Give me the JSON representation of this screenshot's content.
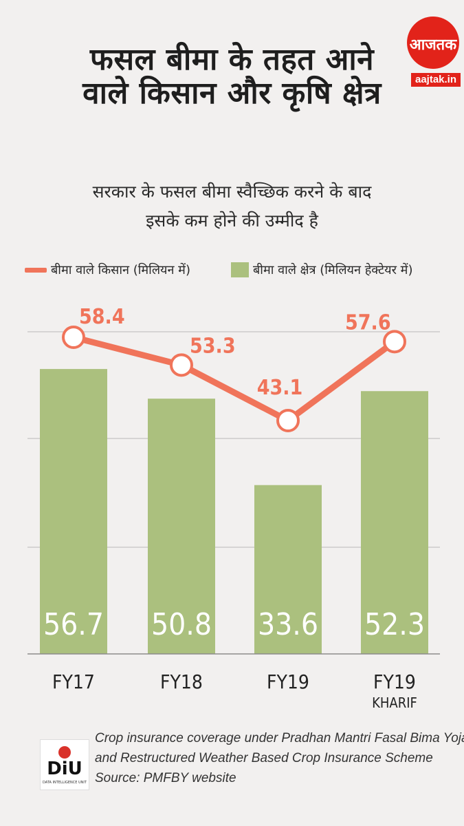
{
  "brand": {
    "logo_text": "आजतक",
    "site": "aajtak.in",
    "unit_name": "DiU",
    "unit_full": "DATA INTELLIGENCE UNIT"
  },
  "title": {
    "line1": "फसल बीमा के तहत आने",
    "line2": "वाले किसान और कृषि क्षेत्र"
  },
  "subtitle": {
    "line1": "सरकार के फसल बीमा स्वैच्छिक करने के बाद",
    "line2": "इसके कम होने की उम्मीद है"
  },
  "legend": {
    "line": "बीमा वाले किसान (मिलियन में)",
    "bar": "बीमा वाले क्षेत्र (मिलियन हेक्टेयर में)"
  },
  "footer": {
    "note1": "Crop insurance coverage under Pradhan Mantri Fasal Bima Yojana",
    "note2": "and Restructured Weather Based Crop Insurance Scheme",
    "source": "Source: PMFBY website"
  },
  "colors": {
    "line": "#f0745a",
    "bar": "#abc07e",
    "brand": "#e2231a"
  },
  "chart_data": {
    "type": "bar",
    "categories": [
      "FY17",
      "FY18",
      "FY19",
      "FY19"
    ],
    "category_sublabels": [
      "",
      "",
      "",
      "KHARIF"
    ],
    "series": [
      {
        "name": "बीमा वाले क्षेत्र (मिलियन हेक्टेयर में)",
        "type": "bar",
        "values": [
          56.7,
          50.8,
          33.6,
          52.3
        ]
      },
      {
        "name": "बीमा वाले किसान (मिलियन में)",
        "type": "line",
        "values": [
          58.4,
          53.3,
          43.1,
          57.6
        ]
      }
    ],
    "grid": true,
    "legend_position": "top"
  }
}
